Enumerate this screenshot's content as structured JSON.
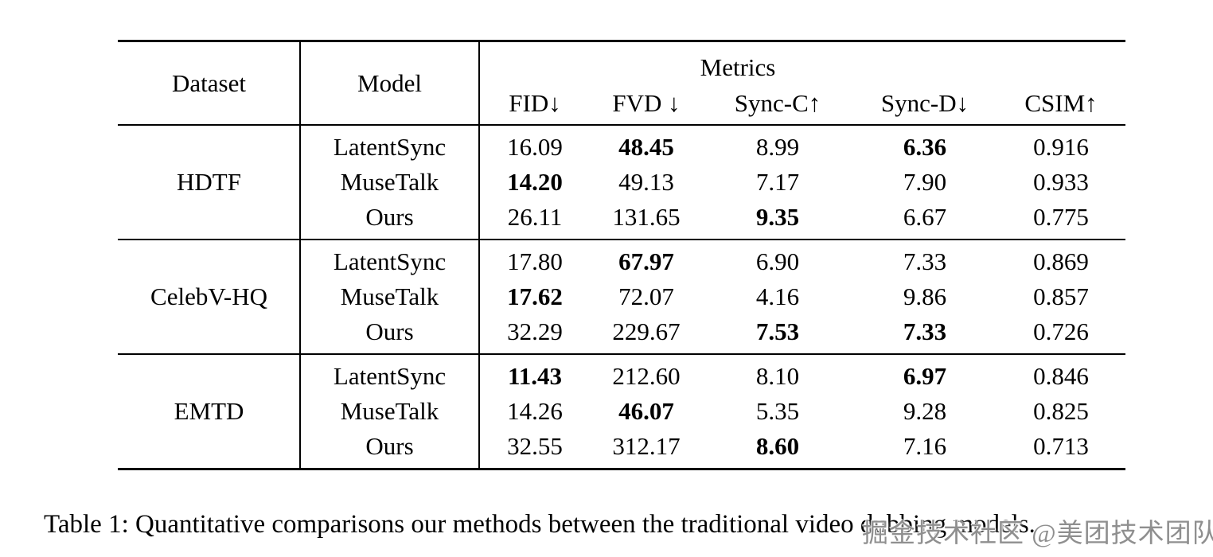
{
  "table": {
    "header": {
      "dataset": "Dataset",
      "model": "Model",
      "metrics_group": "Metrics",
      "metric_columns": [
        "FID↓",
        "FVD ↓",
        "Sync-C↑",
        "Sync-D↓",
        "CSIM↑"
      ]
    },
    "groups": [
      {
        "dataset": "HDTF",
        "rows": [
          {
            "model": "LatentSync",
            "values": [
              "16.09",
              "48.45",
              "8.99",
              "6.36",
              "0.916"
            ],
            "bold": [
              0,
              1,
              0,
              1,
              0
            ]
          },
          {
            "model": "MuseTalk",
            "values": [
              "14.20",
              "49.13",
              "7.17",
              "7.90",
              "0.933"
            ],
            "bold": [
              1,
              0,
              0,
              0,
              0
            ]
          },
          {
            "model": "Ours",
            "values": [
              "26.11",
              "131.65",
              "9.35",
              "6.67",
              "0.775"
            ],
            "bold": [
              0,
              0,
              1,
              0,
              0
            ]
          }
        ]
      },
      {
        "dataset": "CelebV-HQ",
        "rows": [
          {
            "model": "LatentSync",
            "values": [
              "17.80",
              "67.97",
              "6.90",
              "7.33",
              "0.869"
            ],
            "bold": [
              0,
              1,
              0,
              0,
              0
            ]
          },
          {
            "model": "MuseTalk",
            "values": [
              "17.62",
              "72.07",
              "4.16",
              "9.86",
              "0.857"
            ],
            "bold": [
              1,
              0,
              0,
              0,
              0
            ]
          },
          {
            "model": "Ours",
            "values": [
              "32.29",
              "229.67",
              "7.53",
              "7.33",
              "0.726"
            ],
            "bold": [
              0,
              0,
              1,
              1,
              0
            ]
          }
        ]
      },
      {
        "dataset": "EMTD",
        "rows": [
          {
            "model": "LatentSync",
            "values": [
              "11.43",
              "212.60",
              "8.10",
              "6.97",
              "0.846"
            ],
            "bold": [
              1,
              0,
              0,
              1,
              0
            ]
          },
          {
            "model": "MuseTalk",
            "values": [
              "14.26",
              "46.07",
              "5.35",
              "9.28",
              "0.825"
            ],
            "bold": [
              0,
              1,
              0,
              0,
              0
            ]
          },
          {
            "model": "Ours",
            "values": [
              "32.55",
              "312.17",
              "8.60",
              "7.16",
              "0.713"
            ],
            "bold": [
              0,
              0,
              1,
              0,
              0
            ]
          }
        ]
      }
    ]
  },
  "caption": "Table 1: Quantitative comparisons our methods between the traditional video dubbing models.",
  "watermark": "掘金技术社区 @美团技术团队"
}
